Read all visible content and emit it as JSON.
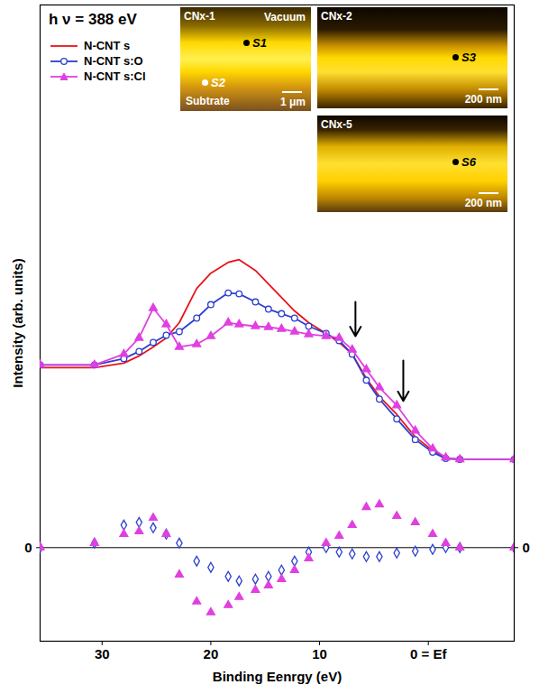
{
  "chart_data": {
    "type": "line",
    "title": "h ν = 388 eV",
    "x_label": "Binding Eenrgy (eV)",
    "y_label": "Intensity (arb. units)",
    "xlim": [
      35.7,
      -7.9
    ],
    "xticks": [
      30,
      20,
      10,
      {
        "value": 0,
        "label": "0 = Ef"
      }
    ],
    "ylim": [
      -10.4,
      60.3
    ],
    "yticks": [
      0
    ],
    "y2lim": [
      -10.4,
      60.3
    ],
    "y2ticks": [
      0
    ],
    "grid": false,
    "legend": "top-left",
    "x": [
      35.7,
      30.7,
      28,
      26.6,
      25.3,
      24.1,
      22.9,
      21.3,
      20,
      18.4,
      17.4,
      15.9,
      14.7,
      13.5,
      12.3,
      11,
      9.4,
      8.2,
      7,
      5.7,
      4.5,
      2.9,
      1.2,
      -0.4,
      -1.6,
      -2.9,
      -7.9
    ],
    "series": [
      {
        "name": "N-CNT s",
        "color": "#e8141b",
        "marker": "none",
        "line_style": "solid",
        "values": [
          20.0,
          20.0,
          20.5,
          21.3,
          22.3,
          23.3,
          25.0,
          28.8,
          30.5,
          31.7,
          32.0,
          30.8,
          29.3,
          27.8,
          26.3,
          25.0,
          23.8,
          22.8,
          21.5,
          18.8,
          16.8,
          14.8,
          12.3,
          10.8,
          10.0,
          9.8,
          9.8
        ]
      },
      {
        "name": "N-CNT s:O",
        "color": "#2a3fd0",
        "marker": "circle",
        "line_style": "solid",
        "values": [
          20.3,
          20.3,
          21.0,
          21.8,
          22.8,
          23.6,
          24.0,
          25.5,
          27.0,
          28.3,
          28.2,
          27.3,
          26.5,
          26.0,
          25.5,
          24.6,
          23.8,
          23.0,
          21.5,
          18.6,
          16.5,
          14.3,
          12.0,
          10.6,
          9.9,
          9.8,
          9.8
        ]
      },
      {
        "name": "N-CNT s:Cl",
        "color": "#e040e0",
        "marker": "triangle",
        "line_style": "solid",
        "values": [
          20.3,
          20.3,
          21.5,
          23.3,
          26.6,
          24.8,
          22.3,
          22.6,
          23.5,
          25.0,
          24.8,
          24.6,
          24.5,
          24.3,
          24.0,
          23.7,
          23.5,
          23.3,
          22.0,
          19.8,
          17.8,
          15.8,
          13.0,
          11.0,
          10.0,
          9.8,
          9.8
        ]
      }
    ],
    "differences": [
      {
        "color": "#2a3fd0",
        "marker": "diamond",
        "values": [
          0,
          0.5,
          2.5,
          2.8,
          2.2,
          1.5,
          0.5,
          -1.5,
          -2.2,
          -3.2,
          -3.7,
          -3.5,
          -3.2,
          -2.5,
          -1.5,
          -0.5,
          0,
          -0.5,
          -0.7,
          -1.0,
          -1.0,
          -0.6,
          -0.4,
          -0.2,
          0,
          0,
          0
        ]
      },
      {
        "color": "#e040e0",
        "marker": "triangle",
        "values": [
          0,
          0.5,
          1.5,
          1.8,
          3.3,
          1.5,
          -3.0,
          -6.0,
          -7.2,
          -6.4,
          -5.5,
          -4.7,
          -4.2,
          -3.5,
          -2.5,
          -1.2,
          0.5,
          1.3,
          2.5,
          4.5,
          4.8,
          3.5,
          2.8,
          1.5,
          0.5,
          0,
          0
        ]
      }
    ],
    "arrows": [
      {
        "x": 6.7,
        "y_start": 27.3,
        "y_end": 23.5
      },
      {
        "x": 2.3,
        "y_start": 20.8,
        "y_end": 16.3
      }
    ],
    "insets": [
      {
        "title": "CNx-1",
        "texts": [
          "Vacuum",
          "Subtrate"
        ],
        "points": [
          "S1",
          "S2"
        ],
        "scale_bar": "1 μm"
      },
      {
        "title": "CNx-2",
        "texts": [],
        "points": [
          "S3"
        ],
        "scale_bar": "200 nm"
      },
      {
        "title": "CNx-5",
        "texts": [],
        "points": [
          "S6"
        ],
        "scale_bar": "200 nm"
      }
    ]
  }
}
